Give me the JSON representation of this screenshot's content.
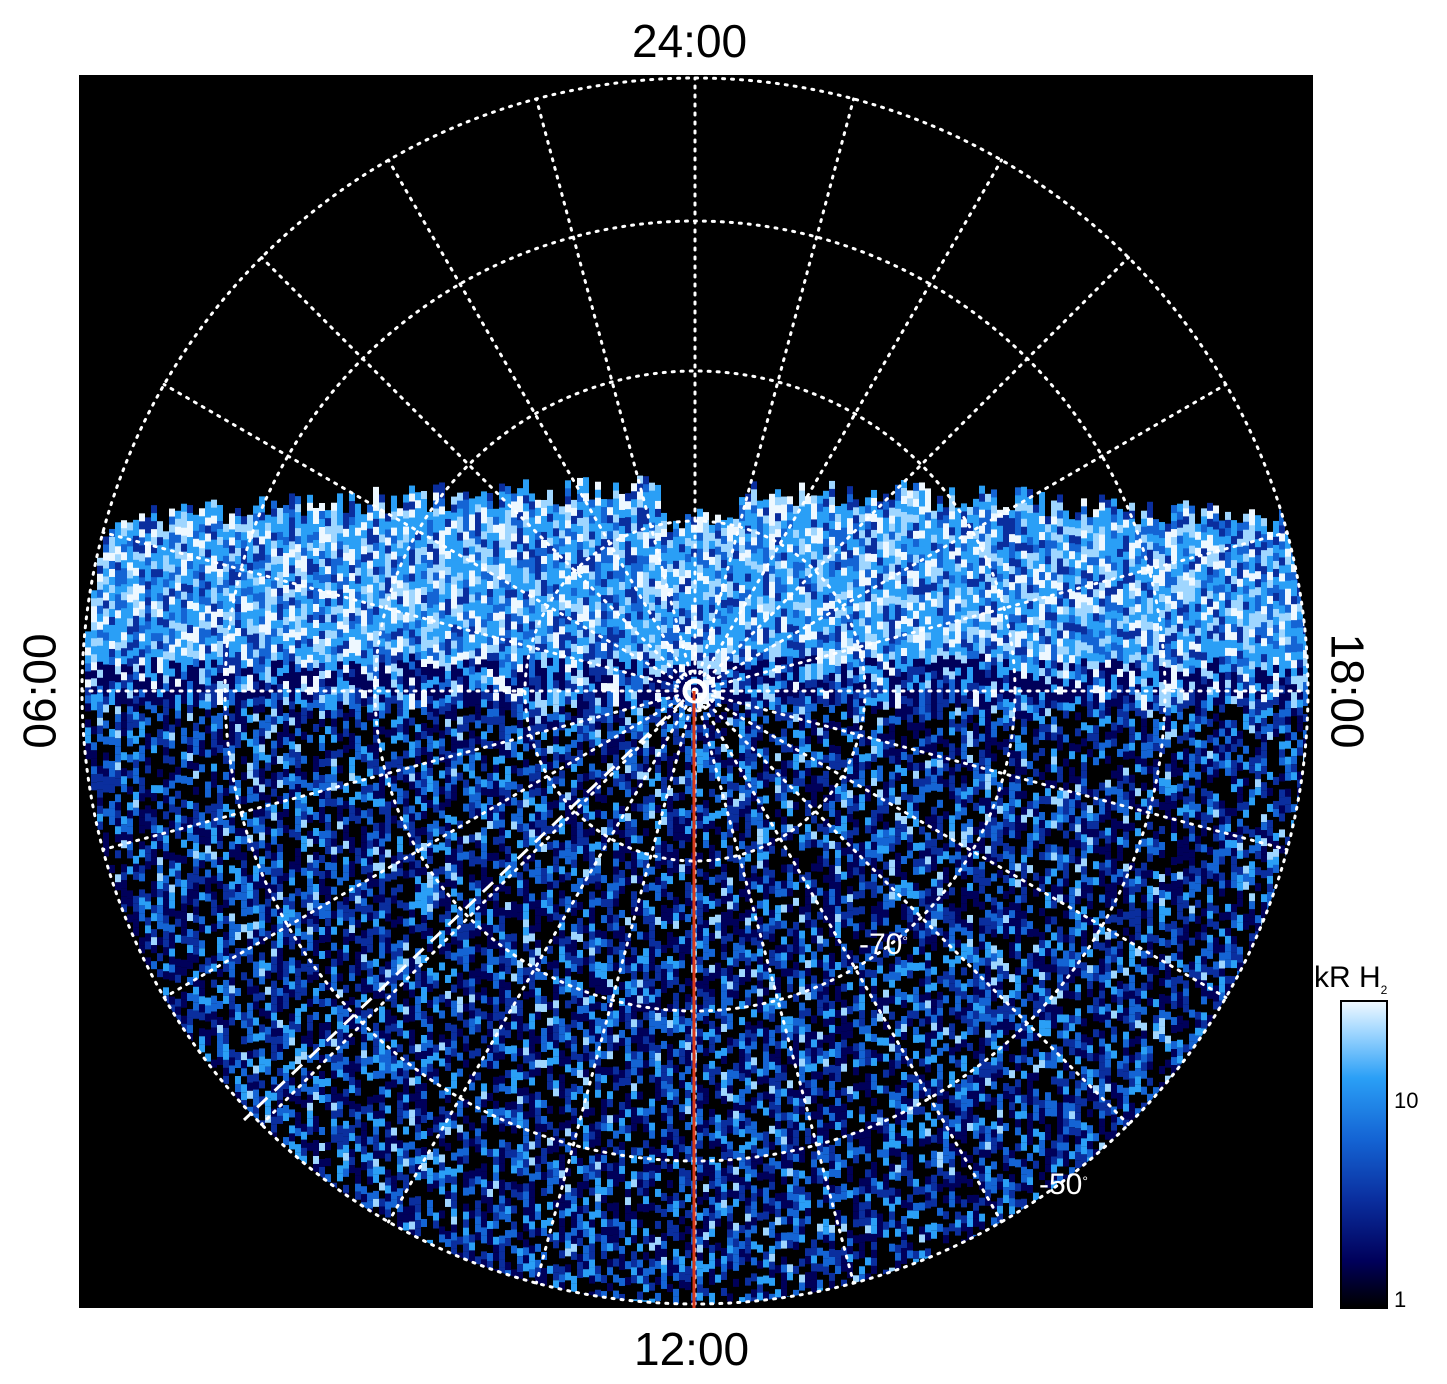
{
  "labels": {
    "top": "24:00",
    "bottom": "12:00",
    "left": "06:00",
    "right": "18:00"
  },
  "latitude_labels": {
    "inner": "-70",
    "outer": "-50"
  },
  "colorbar": {
    "title": "kR H",
    "title_sub": "2",
    "ticks": [
      "10",
      "1"
    ],
    "colors": [
      "#000000",
      "#00005a",
      "#0a2e9e",
      "#1464d4",
      "#2a9ff6",
      "#9fd6ff",
      "#eef8ff"
    ]
  },
  "colors": {
    "grid": "#ffffff",
    "meridian_line": "#d8391a",
    "background": "#000000"
  }
}
